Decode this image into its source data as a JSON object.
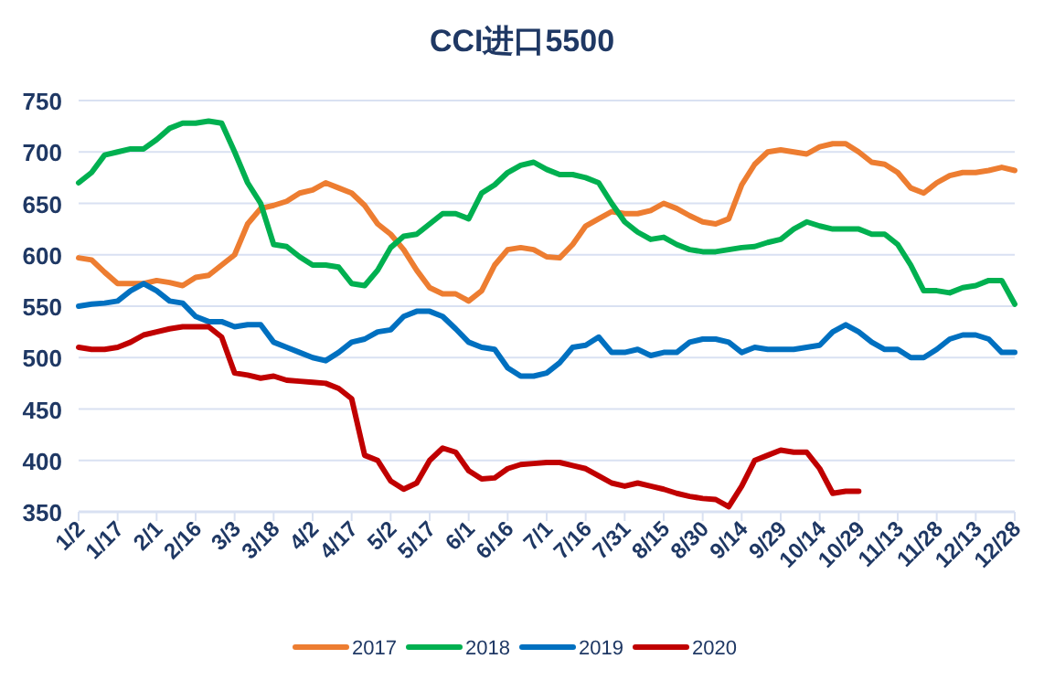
{
  "chart_data": {
    "type": "line",
    "title": "CCI进口5500",
    "categories": [
      "1/2",
      null,
      null,
      "1/17",
      null,
      null,
      "2/1",
      null,
      null,
      "2/16",
      null,
      null,
      "3/3",
      null,
      null,
      "3/18",
      null,
      null,
      "4/2",
      null,
      null,
      "4/17",
      null,
      null,
      "5/2",
      null,
      null,
      "5/17",
      null,
      null,
      "6/1",
      null,
      null,
      "6/16",
      null,
      null,
      "7/1",
      null,
      null,
      "7/16",
      null,
      null,
      "7/31",
      null,
      null,
      "8/15",
      null,
      null,
      "8/30",
      null,
      null,
      "9/14",
      null,
      null,
      "9/29",
      null,
      null,
      "10/14",
      null,
      null,
      "10/29",
      null,
      null,
      "11/13",
      null,
      null,
      "11/28",
      null,
      null,
      "12/13",
      null,
      null,
      "12/28"
    ],
    "ylim": [
      350,
      750
    ],
    "yticks": [
      350,
      400,
      450,
      500,
      550,
      600,
      650,
      700,
      750
    ],
    "grid": "y",
    "legend": "bottom",
    "marker": "none",
    "line_style": "solid",
    "series": [
      {
        "name": "2017",
        "color": "#ed7d31",
        "values": [
          597,
          595,
          583,
          572,
          572,
          572,
          575,
          573,
          570,
          578,
          580,
          590,
          600,
          630,
          645,
          648,
          652,
          660,
          663,
          670,
          665,
          660,
          648,
          630,
          620,
          605,
          585,
          568,
          562,
          562,
          555,
          565,
          590,
          605,
          607,
          605,
          598,
          597,
          610,
          628,
          635,
          642,
          640,
          640,
          643,
          650,
          645,
          638,
          632,
          630,
          635,
          668,
          688,
          700,
          702,
          700,
          698,
          705,
          708,
          708,
          700,
          690,
          688,
          680,
          665,
          660,
          670,
          677,
          680,
          680,
          682,
          685,
          682
        ]
      },
      {
        "name": "2018",
        "color": "#00b050",
        "values": [
          670,
          680,
          697,
          700,
          703,
          703,
          712,
          723,
          728,
          728,
          730,
          728,
          700,
          670,
          650,
          610,
          608,
          598,
          590,
          590,
          588,
          572,
          570,
          585,
          607,
          618,
          620,
          630,
          640,
          640,
          635,
          660,
          668,
          680,
          687,
          690,
          683,
          678,
          678,
          675,
          670,
          650,
          632,
          622,
          615,
          617,
          610,
          605,
          603,
          603,
          605,
          607,
          608,
          612,
          615,
          625,
          632,
          628,
          625,
          625,
          625,
          620,
          620,
          610,
          590,
          565,
          565,
          563,
          568,
          570,
          575,
          575,
          552
        ]
      },
      {
        "name": "2019",
        "color": "#0070c0",
        "values": [
          550,
          552,
          553,
          555,
          565,
          572,
          565,
          555,
          553,
          540,
          535,
          535,
          530,
          532,
          532,
          515,
          510,
          505,
          500,
          497,
          505,
          515,
          518,
          525,
          527,
          540,
          545,
          545,
          540,
          528,
          515,
          510,
          508,
          490,
          482,
          482,
          485,
          495,
          510,
          512,
          520,
          505,
          505,
          508,
          502,
          505,
          505,
          515,
          518,
          518,
          515,
          505,
          510,
          508,
          508,
          508,
          510,
          512,
          525,
          532,
          525,
          515,
          508,
          508,
          500,
          500,
          508,
          518,
          522,
          522,
          518,
          505,
          505
        ]
      },
      {
        "name": "2020",
        "color": "#c00000",
        "values": [
          510,
          508,
          508,
          510,
          515,
          522,
          525,
          528,
          530,
          530,
          530,
          520,
          485,
          483,
          480,
          482,
          478,
          477,
          476,
          475,
          470,
          460,
          405,
          400,
          380,
          372,
          378,
          400,
          412,
          408,
          390,
          382,
          383,
          392,
          396,
          397,
          398,
          398,
          395,
          392,
          385,
          378,
          375,
          378,
          375,
          372,
          368,
          365,
          363,
          362,
          355,
          375,
          400,
          405,
          410,
          408,
          408,
          392,
          368,
          370,
          370,
          null,
          null,
          null,
          null,
          null,
          null,
          null,
          null,
          null,
          null,
          null,
          null
        ]
      }
    ]
  }
}
